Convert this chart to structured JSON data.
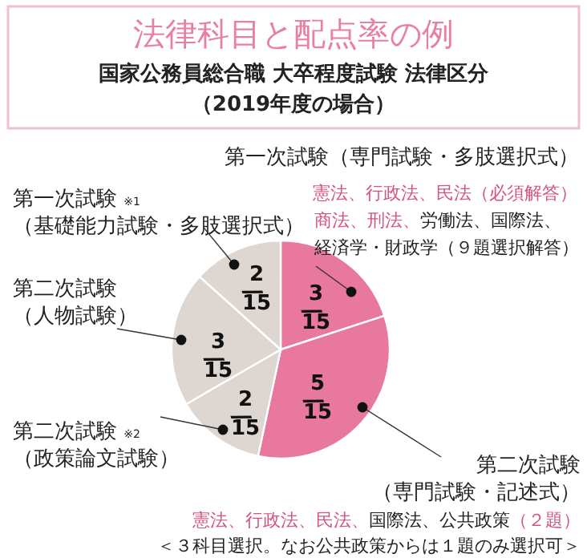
{
  "chart_data": {
    "type": "pie",
    "title": "法律科目と配点率の例",
    "subtitle": "国家公務員総合職 大卒程度試験 法律区分（2019年度の場合）",
    "categories": [
      "第一次試験（専門試験・多肢選択式）",
      "第二次試験（専門試験・記述式）",
      "第二次試験 ※2（政策論文試験）",
      "第二次試験（人物試験）",
      "第一次試験 ※1（基礎能力試験・多肢選択式）"
    ],
    "values": [
      3,
      5,
      2,
      3,
      2
    ],
    "value_labels": [
      "3/15",
      "5/15",
      "2/15",
      "3/15",
      "2/15"
    ],
    "colors": [
      "#e8789e",
      "#e8789e",
      "#ddd6d1",
      "#ddd6d1",
      "#ddd6d1"
    ],
    "annotations": [
      "憲法、行政法、民法（必須解答）",
      "商法、刑法、",
      "労働法、国際法、",
      "経済学・財政学（９題選択解答）",
      "憲法、行政法、民法、",
      "国際法、公共政策",
      "（２題）",
      "＜３科目選択。なお公共政策からは１題のみ選択可＞"
    ]
  }
}
